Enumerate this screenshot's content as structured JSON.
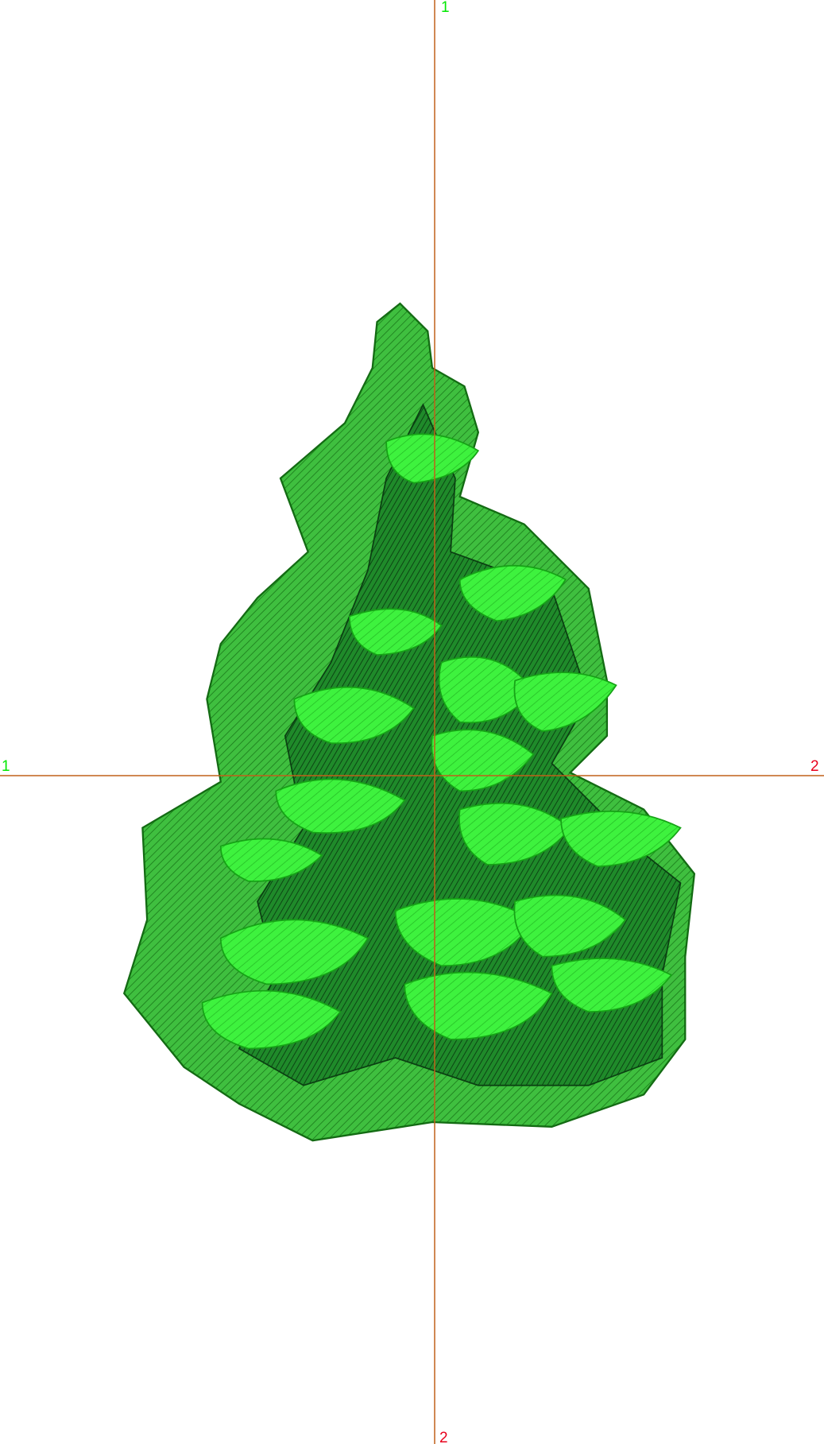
{
  "guides": {
    "vertical": {
      "start_label": "1",
      "end_label": "2"
    },
    "horizontal": {
      "start_label": "1",
      "end_label": "2"
    }
  }
}
